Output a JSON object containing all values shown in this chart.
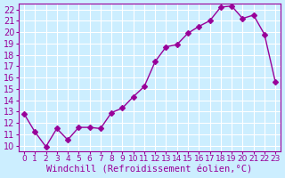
{
  "x": [
    0,
    1,
    2,
    3,
    4,
    5,
    6,
    7,
    8,
    9,
    10,
    11,
    12,
    13,
    14,
    15,
    16,
    17,
    18,
    19,
    20,
    21,
    22,
    23
  ],
  "y": [
    12.8,
    11.2,
    9.9,
    11.5,
    10.5,
    11.6,
    11.6,
    11.5,
    12.9,
    13.3,
    14.3,
    15.2,
    17.4,
    18.7,
    18.9,
    19.9,
    20.5,
    21.0,
    22.2,
    22.3,
    21.2,
    21.5,
    19.8,
    15.6
  ],
  "line_color": "#990099",
  "marker": "D",
  "marker_size": 3,
  "bg_color": "#cceeff",
  "grid_color": "#ffffff",
  "xlabel": "Windchill (Refroidissement éolien,°C)",
  "ylabel_ticks": [
    10,
    11,
    12,
    13,
    14,
    15,
    16,
    17,
    18,
    19,
    20,
    21,
    22
  ],
  "ylim": [
    9.5,
    22.5
  ],
  "xlim": [
    -0.5,
    23.5
  ],
  "xtick_labels": [
    "0",
    "1",
    "2",
    "3",
    "4",
    "5",
    "6",
    "7",
    "8",
    "9",
    "10",
    "11",
    "12",
    "13",
    "14",
    "15",
    "16",
    "17",
    "18",
    "19",
    "20",
    "21",
    "22",
    "23"
  ],
  "axis_color": "#990099",
  "tick_color": "#990099",
  "label_color": "#990099",
  "xlabel_fontsize": 7.5,
  "tick_fontsize": 7
}
